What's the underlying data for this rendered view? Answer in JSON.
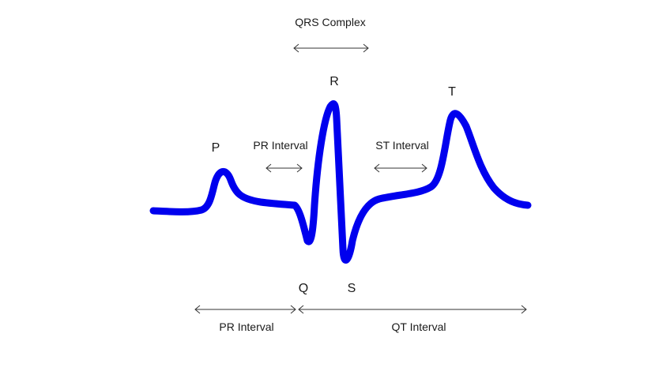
{
  "colors": {
    "waveform": "#0000ee",
    "arrow": "#333333",
    "text": "#1a1a1a",
    "background": "#ffffff"
  },
  "labels": {
    "qrs_complex": "QRS Complex",
    "r_wave": "R",
    "t_wave": "T",
    "p_wave": "P",
    "pr_interval_upper": "PR Interval",
    "st_interval": "ST Interval",
    "q_wave": "Q",
    "s_wave": "S",
    "pr_interval_lower": "PR Interval",
    "qt_interval": "QT Interval"
  }
}
